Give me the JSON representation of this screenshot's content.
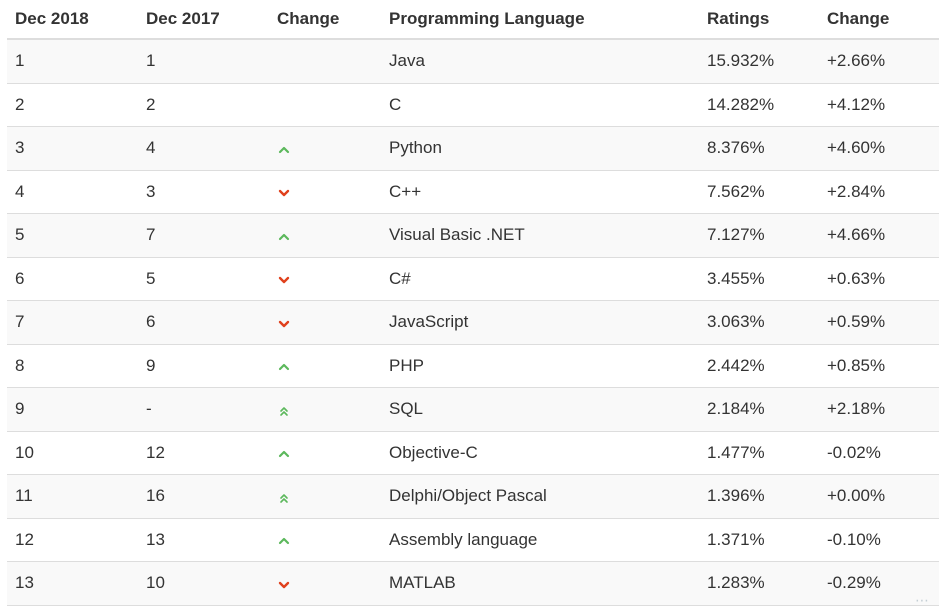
{
  "headers": {
    "dec2018": "Dec 2018",
    "dec2017": "Dec 2017",
    "change": "Change",
    "language": "Programming Language",
    "ratings": "Ratings",
    "change_pct": "Change"
  },
  "colors": {
    "up": "#5cb85c",
    "down": "#e0401c",
    "border": "#dddddd",
    "stripe": "#f9f9f9"
  },
  "rows": [
    {
      "dec2018": "1",
      "dec2017": "1",
      "trend": "none",
      "language": "Java",
      "rating": "15.932%",
      "change": "+2.66%"
    },
    {
      "dec2018": "2",
      "dec2017": "2",
      "trend": "none",
      "language": "C",
      "rating": "14.282%",
      "change": "+4.12%"
    },
    {
      "dec2018": "3",
      "dec2017": "4",
      "trend": "up",
      "language": "Python",
      "rating": "8.376%",
      "change": "+4.60%"
    },
    {
      "dec2018": "4",
      "dec2017": "3",
      "trend": "down",
      "language": "C++",
      "rating": "7.562%",
      "change": "+2.84%"
    },
    {
      "dec2018": "5",
      "dec2017": "7",
      "trend": "up",
      "language": "Visual Basic .NET",
      "rating": "7.127%",
      "change": "+4.66%"
    },
    {
      "dec2018": "6",
      "dec2017": "5",
      "trend": "down",
      "language": "C#",
      "rating": "3.455%",
      "change": "+0.63%"
    },
    {
      "dec2018": "7",
      "dec2017": "6",
      "trend": "down",
      "language": "JavaScript",
      "rating": "3.063%",
      "change": "+0.59%"
    },
    {
      "dec2018": "8",
      "dec2017": "9",
      "trend": "up",
      "language": "PHP",
      "rating": "2.442%",
      "change": "+0.85%"
    },
    {
      "dec2018": "9",
      "dec2017": "-",
      "trend": "up-double",
      "language": "SQL",
      "rating": "2.184%",
      "change": "+2.18%"
    },
    {
      "dec2018": "10",
      "dec2017": "12",
      "trend": "up",
      "language": "Objective-C",
      "rating": "1.477%",
      "change": "-0.02%"
    },
    {
      "dec2018": "11",
      "dec2017": "16",
      "trend": "up-double",
      "language": "Delphi/Object Pascal",
      "rating": "1.396%",
      "change": "+0.00%"
    },
    {
      "dec2018": "12",
      "dec2017": "13",
      "trend": "up",
      "language": "Assembly language",
      "rating": "1.371%",
      "change": "-0.10%"
    },
    {
      "dec2018": "13",
      "dec2017": "10",
      "trend": "down",
      "language": "MATLAB",
      "rating": "1.283%",
      "change": "-0.29%"
    }
  ]
}
